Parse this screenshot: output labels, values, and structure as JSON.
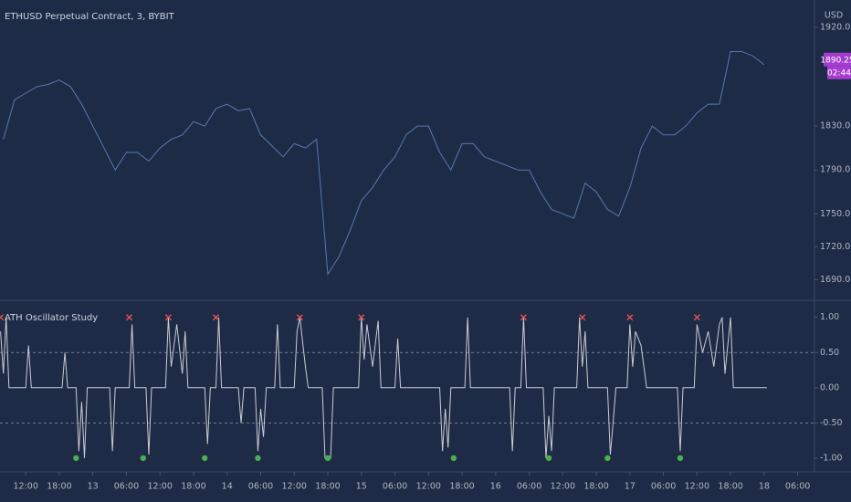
{
  "chart_data": [
    {
      "type": "line",
      "title": "ETHUSD Perpetual Contract, 3, BYBIT",
      "currency": "USD",
      "color": "#5878b0",
      "x": [
        -4,
        -2,
        0,
        2,
        4,
        6,
        8,
        10,
        12,
        14,
        16,
        18,
        20,
        22,
        24,
        26,
        28,
        30,
        32,
        34,
        36,
        38,
        40,
        42,
        44,
        46,
        48,
        50,
        52,
        54,
        56,
        58,
        60,
        62,
        64,
        66,
        68,
        70,
        72,
        74,
        76,
        78,
        80,
        82,
        84,
        86,
        88,
        90,
        92,
        94,
        96,
        98,
        100,
        102,
        104,
        106,
        108,
        110,
        112,
        114,
        116,
        118,
        120,
        122,
        124,
        126,
        128,
        130,
        132
      ],
      "values": [
        1818,
        1854,
        1860,
        1866,
        1868,
        1872,
        1866,
        1850,
        1830,
        1810,
        1790,
        1806,
        1806,
        1798,
        1810,
        1818,
        1822,
        1834,
        1830,
        1846,
        1850,
        1844,
        1846,
        1822,
        1812,
        1802,
        1814,
        1810,
        1818,
        1695,
        1711,
        1735,
        1762,
        1774,
        1790,
        1802,
        1822,
        1830,
        1830,
        1806,
        1790,
        1814,
        1814,
        1802,
        1798,
        1794,
        1790,
        1790,
        1770,
        1754,
        1750,
        1746,
        1778,
        1770,
        1754,
        1748,
        1774,
        1810,
        1830,
        1822,
        1822,
        1830,
        1842,
        1850,
        1850,
        1898,
        1898,
        1894,
        1886
      ],
      "xlim": [
        -4.6,
        141
      ],
      "ylim": [
        1672,
        1945
      ],
      "yticks": [
        {
          "value": 1920,
          "label": "1920.00"
        },
        {
          "value": 1830,
          "label": "1830.00"
        },
        {
          "value": 1790,
          "label": "1790.00"
        },
        {
          "value": 1750,
          "label": "1750.00"
        },
        {
          "value": 1720,
          "label": "1720.00"
        },
        {
          "value": 1690,
          "label": "1690.00"
        }
      ],
      "last_price": 1890.25,
      "countdown": "02:44"
    },
    {
      "type": "line",
      "title": "ATH Oscillator Study",
      "color": "#c9ccd4",
      "x": [
        -4.5,
        -4,
        -3.5,
        -3,
        0,
        0.5,
        1,
        6.5,
        7,
        7.5,
        9,
        9.5,
        10,
        10.5,
        11,
        15,
        15.5,
        16,
        18.5,
        19,
        19.5,
        21.5,
        22,
        22.5,
        25,
        25.5,
        26,
        27,
        28,
        28.5,
        29,
        32,
        32.5,
        33,
        34,
        34.5,
        35,
        38,
        38.5,
        39,
        41,
        41.5,
        42,
        42.5,
        43,
        44.5,
        45,
        45.5,
        48,
        48.5,
        49,
        50,
        50.5,
        53,
        53.5,
        54.5,
        55,
        59.5,
        60,
        60.5,
        61,
        62,
        63,
        63.5,
        66,
        66.5,
        67,
        74,
        74.5,
        75,
        75.5,
        76,
        78.5,
        79,
        79.5,
        86.5,
        87,
        87.5,
        88.5,
        89,
        89.5,
        92.5,
        93,
        93.5,
        94,
        94.5,
        98.5,
        99,
        99.5,
        100,
        100.5,
        104,
        104.5,
        105,
        105.5,
        107.5,
        108,
        108.5,
        109,
        110,
        111,
        116.5,
        117,
        117.5,
        119.5,
        120,
        121,
        122,
        123,
        124,
        124.5,
        125,
        126,
        126.5,
        132.5
      ],
      "values": [
        0.8,
        0.2,
        1,
        0,
        0,
        0.6,
        0,
        0,
        0.5,
        0,
        0,
        -0.9,
        -0.2,
        -1,
        0,
        0,
        -0.9,
        0,
        0,
        0.9,
        0,
        0,
        -0.95,
        0,
        0,
        1,
        0.3,
        0.9,
        0.2,
        0.8,
        0,
        0,
        -0.8,
        0,
        0,
        1,
        0,
        0,
        -0.5,
        0,
        0,
        -0.9,
        -0.3,
        -0.7,
        0,
        0,
        0.9,
        0,
        0,
        0.8,
        1,
        0.3,
        0,
        0,
        -1,
        -1,
        0,
        0,
        1,
        0.4,
        0.9,
        0.3,
        0.95,
        0,
        0,
        0.7,
        0,
        0,
        -0.9,
        -0.3,
        -0.85,
        0,
        0,
        1,
        0,
        0,
        -0.9,
        0,
        0,
        1,
        0,
        0,
        -1,
        -0.4,
        -0.9,
        0,
        0,
        1,
        0.3,
        0.8,
        0,
        0,
        -0.95,
        -0.5,
        0,
        0,
        0.9,
        0.3,
        0.8,
        0.6,
        0,
        0,
        -0.9,
        0,
        0,
        0.9,
        0.5,
        0.8,
        0.3,
        0.9,
        1,
        0.2,
        1,
        0,
        0
      ],
      "sell_signals": {
        "color": "#ef5350",
        "x": [
          -4.5,
          18.5,
          25.5,
          34,
          49,
          60,
          89,
          99.5,
          108,
          120
        ],
        "values": [
          1,
          1,
          1,
          1,
          1,
          1,
          1,
          1,
          1,
          1
        ]
      },
      "buy_signals": {
        "color": "#4caf50",
        "x": [
          9,
          21,
          32,
          41.5,
          54,
          76.5,
          93.5,
          104,
          117
        ],
        "values": [
          -1,
          -1,
          -1,
          -1,
          -1,
          -1,
          -1,
          -1,
          -1
        ]
      },
      "hlines": [
        0.5,
        -0.5
      ],
      "xlim": [
        -4.6,
        141
      ],
      "ylim": [
        -1.17,
        1.23
      ],
      "yticks": [
        {
          "value": 1,
          "label": "1.00"
        },
        {
          "value": 0.5,
          "label": "0.50"
        },
        {
          "value": 0,
          "label": "0.00"
        },
        {
          "value": -0.5,
          "label": "-0.50"
        },
        {
          "value": -1,
          "label": "-1.00"
        }
      ],
      "xticks": [
        {
          "value": 0,
          "label": "12:00"
        },
        {
          "value": 6,
          "label": "18:00"
        },
        {
          "value": 12,
          "label": "13"
        },
        {
          "value": 18,
          "label": "06:00"
        },
        {
          "value": 24,
          "label": "12:00"
        },
        {
          "value": 30,
          "label": "18:00"
        },
        {
          "value": 36,
          "label": "14"
        },
        {
          "value": 42,
          "label": "06:00"
        },
        {
          "value": 48,
          "label": "12:00"
        },
        {
          "value": 54,
          "label": "18:00"
        },
        {
          "value": 60,
          "label": "15"
        },
        {
          "value": 66,
          "label": "06:00"
        },
        {
          "value": 72,
          "label": "12:00"
        },
        {
          "value": 78,
          "label": "18:00"
        },
        {
          "value": 84,
          "label": "16"
        },
        {
          "value": 90,
          "label": "06:00"
        },
        {
          "value": 96,
          "label": "12:00"
        },
        {
          "value": 102,
          "label": "18:00"
        },
        {
          "value": 108,
          "label": "17"
        },
        {
          "value": 114,
          "label": "06:00"
        },
        {
          "value": 120,
          "label": "12:00"
        },
        {
          "value": 126,
          "label": "18:00"
        },
        {
          "value": 132,
          "label": "18"
        },
        {
          "value": 138,
          "label": "06:00"
        }
      ]
    }
  ]
}
